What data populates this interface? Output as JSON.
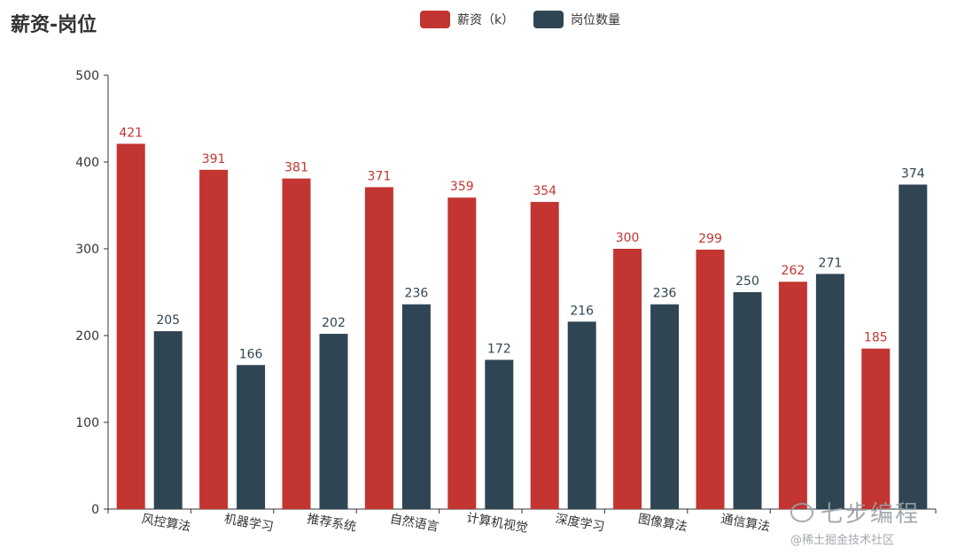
{
  "chart_data": {
    "type": "bar",
    "title": "薪资-岗位",
    "categories": [
      "风控算法",
      "机器学习",
      "推荐系统",
      "自然语言",
      "计算机视觉",
      "深度学习",
      "图像算法",
      "通信算法",
      "",
      ""
    ],
    "series": [
      {
        "name": "薪资（k）",
        "color": "#c23531",
        "values": [
          421,
          391,
          381,
          371,
          359,
          354,
          300,
          299,
          262,
          185
        ]
      },
      {
        "name": "岗位数量",
        "color": "#2f4554",
        "values": [
          205,
          166,
          202,
          236,
          172,
          216,
          236,
          250,
          271,
          374
        ]
      }
    ],
    "ylim": [
      0,
      500
    ],
    "yticks": [
      0,
      100,
      200,
      300,
      400,
      500
    ],
    "xlabel": "",
    "ylabel": "",
    "grid": false,
    "legend": "top-center"
  },
  "watermark": {
    "main": "七步编程",
    "sub": "@稀土掘金技术社区"
  }
}
